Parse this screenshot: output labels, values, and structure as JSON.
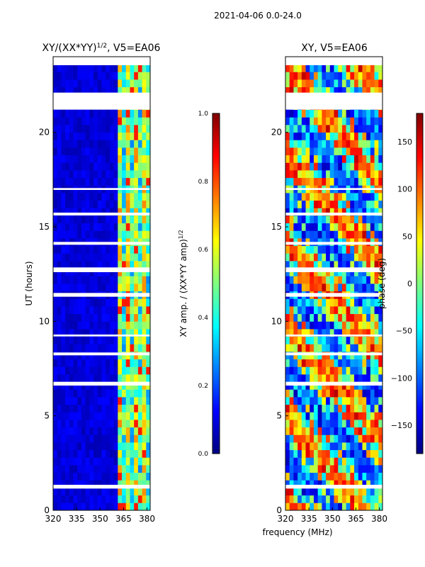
{
  "suptitle": "2021-04-06 0.0-24.0",
  "shared_xlabel": "frequency (MHz)",
  "colors": {
    "jet": [
      "#00007f",
      "#0000ff",
      "#007fff",
      "#00ffff",
      "#7fff7f",
      "#ffff00",
      "#ff7f00",
      "#ff0000",
      "#7f0000"
    ],
    "gap": "#ffffff",
    "axis": "#000000"
  },
  "chart_data": [
    {
      "type": "heatmap",
      "title_main": "XY/(XX*YY)",
      "title_sup": "1/2",
      "title_suffix": ", V5=EA06",
      "xlabel": "frequency (MHz)",
      "ylabel": "UT (hours)",
      "xlim": [
        320,
        382
      ],
      "ylim": [
        0,
        24
      ],
      "xticks": [
        320,
        335,
        350,
        365,
        380
      ],
      "yticks": [
        0,
        5,
        10,
        15,
        20
      ],
      "colorbar": {
        "label": "XY amp. / (XX*YY amp)",
        "label_sup": "1/2",
        "range": [
          0.0,
          1.0
        ],
        "ticks": [
          "0.0",
          "0.2",
          "0.4",
          "0.6",
          "0.8",
          "1.0"
        ]
      },
      "hot_band_mhz": [
        360,
        382
      ],
      "gaps_hours": [
        [
          1.15,
          1.35
        ],
        [
          6.6,
          6.8
        ],
        [
          8.2,
          8.35
        ],
        [
          9.2,
          9.3
        ],
        [
          11.3,
          11.5
        ],
        [
          12.6,
          12.85
        ],
        [
          14.05,
          14.2
        ],
        [
          15.6,
          15.75
        ],
        [
          16.95,
          17.05
        ],
        [
          21.2,
          22.1
        ],
        [
          23.55,
          24.0
        ]
      ]
    },
    {
      "type": "heatmap",
      "title": "XY, V5=EA06",
      "xlabel": "frequency (MHz)",
      "ylabel": "",
      "xlim": [
        320,
        382
      ],
      "ylim": [
        0,
        24
      ],
      "xticks": [
        320,
        335,
        350,
        365,
        380
      ],
      "yticks": [
        0,
        5,
        10,
        15,
        20
      ],
      "colorbar": {
        "label": "phase (deg)",
        "range": [
          -180,
          180
        ],
        "ticks": [
          "150",
          "100",
          "50",
          "0",
          "−50",
          "−100",
          "−150"
        ],
        "tick_values": [
          150,
          100,
          50,
          0,
          -50,
          -100,
          -150
        ]
      },
      "gaps_hours": [
        [
          1.15,
          1.35
        ],
        [
          6.6,
          6.8
        ],
        [
          8.2,
          8.35
        ],
        [
          9.2,
          9.3
        ],
        [
          11.3,
          11.5
        ],
        [
          12.6,
          12.85
        ],
        [
          14.05,
          14.2
        ],
        [
          15.6,
          15.75
        ],
        [
          16.95,
          17.05
        ],
        [
          21.2,
          22.1
        ],
        [
          23.55,
          24.0
        ]
      ]
    }
  ]
}
